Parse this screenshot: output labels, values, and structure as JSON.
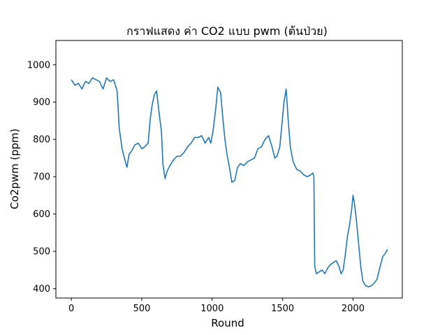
{
  "chart_data": {
    "type": "line",
    "title": "กราฟแสดง ค่า CO2 แบบ pwm (ต้นป่วย)",
    "xlabel": "Round",
    "ylabel": "Co2pwm (ppm)",
    "xlim": [
      -110,
      2350
    ],
    "ylim": [
      375,
      1065
    ],
    "xticks": [
      0,
      500,
      1000,
      1500,
      2000
    ],
    "yticks": [
      400,
      500,
      600,
      700,
      800,
      900,
      1000
    ],
    "grid": false,
    "legend": "none",
    "series": [
      {
        "color": "#1f77b4",
        "points": [
          [
            0,
            960
          ],
          [
            25,
            945
          ],
          [
            50,
            950
          ],
          [
            75,
            935
          ],
          [
            100,
            955
          ],
          [
            125,
            950
          ],
          [
            150,
            965
          ],
          [
            175,
            960
          ],
          [
            200,
            955
          ],
          [
            225,
            935
          ],
          [
            250,
            965
          ],
          [
            275,
            955
          ],
          [
            300,
            960
          ],
          [
            325,
            930
          ],
          [
            340,
            830
          ],
          [
            360,
            775
          ],
          [
            380,
            745
          ],
          [
            395,
            725
          ],
          [
            410,
            760
          ],
          [
            430,
            770
          ],
          [
            450,
            785
          ],
          [
            475,
            790
          ],
          [
            500,
            775
          ],
          [
            520,
            780
          ],
          [
            545,
            790
          ],
          [
            560,
            855
          ],
          [
            575,
            895
          ],
          [
            590,
            920
          ],
          [
            605,
            930
          ],
          [
            620,
            880
          ],
          [
            640,
            820
          ],
          [
            650,
            735
          ],
          [
            665,
            695
          ],
          [
            680,
            715
          ],
          [
            700,
            730
          ],
          [
            725,
            745
          ],
          [
            750,
            755
          ],
          [
            775,
            755
          ],
          [
            800,
            765
          ],
          [
            825,
            780
          ],
          [
            850,
            790
          ],
          [
            875,
            805
          ],
          [
            900,
            805
          ],
          [
            925,
            810
          ],
          [
            950,
            790
          ],
          [
            975,
            805
          ],
          [
            990,
            790
          ],
          [
            1005,
            820
          ],
          [
            1025,
            880
          ],
          [
            1040,
            940
          ],
          [
            1060,
            925
          ],
          [
            1075,
            860
          ],
          [
            1090,
            800
          ],
          [
            1105,
            760
          ],
          [
            1125,
            720
          ],
          [
            1140,
            685
          ],
          [
            1160,
            690
          ],
          [
            1180,
            725
          ],
          [
            1200,
            735
          ],
          [
            1225,
            730
          ],
          [
            1250,
            740
          ],
          [
            1275,
            745
          ],
          [
            1300,
            750
          ],
          [
            1325,
            775
          ],
          [
            1350,
            780
          ],
          [
            1375,
            800
          ],
          [
            1400,
            810
          ],
          [
            1425,
            780
          ],
          [
            1445,
            750
          ],
          [
            1460,
            755
          ],
          [
            1480,
            780
          ],
          [
            1495,
            840
          ],
          [
            1510,
            900
          ],
          [
            1525,
            935
          ],
          [
            1540,
            850
          ],
          [
            1555,
            780
          ],
          [
            1575,
            740
          ],
          [
            1600,
            720
          ],
          [
            1625,
            715
          ],
          [
            1650,
            705
          ],
          [
            1675,
            700
          ],
          [
            1700,
            705
          ],
          [
            1715,
            710
          ],
          [
            1722,
            700
          ],
          [
            1728,
            460
          ],
          [
            1740,
            440
          ],
          [
            1760,
            445
          ],
          [
            1780,
            450
          ],
          [
            1800,
            440
          ],
          [
            1820,
            455
          ],
          [
            1840,
            465
          ],
          [
            1860,
            470
          ],
          [
            1880,
            475
          ],
          [
            1900,
            460
          ],
          [
            1915,
            440
          ],
          [
            1930,
            450
          ],
          [
            1945,
            490
          ],
          [
            1960,
            540
          ],
          [
            1975,
            570
          ],
          [
            1990,
            610
          ],
          [
            2000,
            650
          ],
          [
            2010,
            630
          ],
          [
            2025,
            580
          ],
          [
            2040,
            520
          ],
          [
            2055,
            460
          ],
          [
            2070,
            420
          ],
          [
            2090,
            408
          ],
          [
            2110,
            405
          ],
          [
            2130,
            408
          ],
          [
            2150,
            415
          ],
          [
            2170,
            425
          ],
          [
            2190,
            455
          ],
          [
            2210,
            485
          ],
          [
            2230,
            495
          ],
          [
            2245,
            505
          ]
        ]
      }
    ]
  }
}
